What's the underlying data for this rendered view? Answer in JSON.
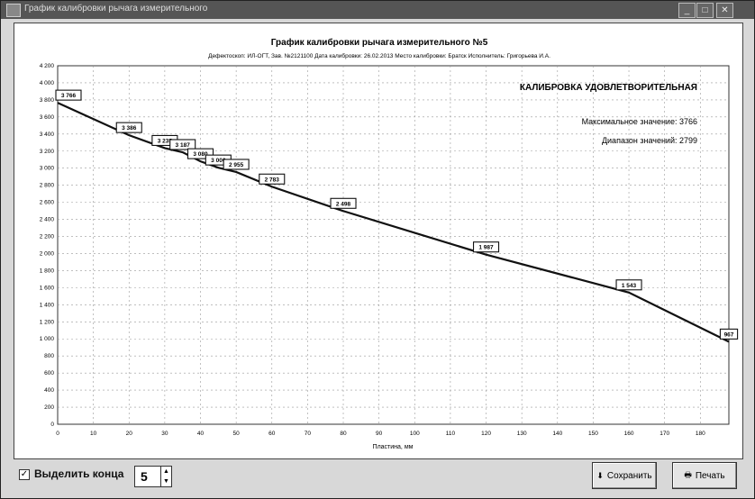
{
  "window": {
    "title": "График калибровки рычага измерительного",
    "controls": [
      "_",
      "□",
      "✕"
    ]
  },
  "chart_header": {
    "title": "График калибровки рычага измерительного №5",
    "subtitle": "Дефектоскоп: ИЛ-ОГТ, Зав. №2121100    Дата калибровки: 26.02.2013    Место калибровки: Братск    Исполнитель: Григорьева И.А."
  },
  "status": {
    "verdict": "КАЛИБРОВКА УДОВЛЕТВОРИТЕЛЬНАЯ",
    "max_text": "Максимальное значение: 3766",
    "range_text": "Диапазон значений: 2799"
  },
  "chart_data": {
    "type": "line",
    "xlabel": "Пластина, мм",
    "ylabel": "",
    "xlim": [
      0,
      188
    ],
    "ylim": [
      0,
      4200
    ],
    "x_ticks": [
      "0",
      "10",
      "20",
      "30",
      "40",
      "50",
      "60",
      "70",
      "80",
      "90",
      "100",
      "110",
      "120",
      "130",
      "140",
      "150",
      "160",
      "170",
      "180"
    ],
    "y_ticks": [
      "0",
      "200",
      "400",
      "600",
      "800",
      "1 000",
      "1 200",
      "1 400",
      "1 600",
      "1 800",
      "2 000",
      "2 200",
      "2 400",
      "2 600",
      "2 800",
      "3 000",
      "3 200",
      "3 400",
      "3 600",
      "3 800",
      "4 000",
      "4 200"
    ],
    "grid": true,
    "line_color": "#111111",
    "x": [
      0,
      20,
      30,
      35,
      40,
      45,
      50,
      60,
      80,
      120,
      160,
      188
    ],
    "values": [
      3766,
      3386,
      3235,
      3187,
      3080,
      3006,
      2955,
      2783,
      2498,
      1987,
      1543,
      967
    ],
    "point_labels": [
      "3 766",
      "3 386",
      "3 235",
      "3 187",
      "3 080",
      "3 006",
      "2 955",
      "2 783",
      "2 498",
      "1 987",
      "1 543",
      "967"
    ]
  },
  "bottom": {
    "checkbox_label": "Выделить конца",
    "checkbox_checked": true,
    "spin_value": "5",
    "save_label": "Сохранить",
    "print_label": "Печать"
  }
}
